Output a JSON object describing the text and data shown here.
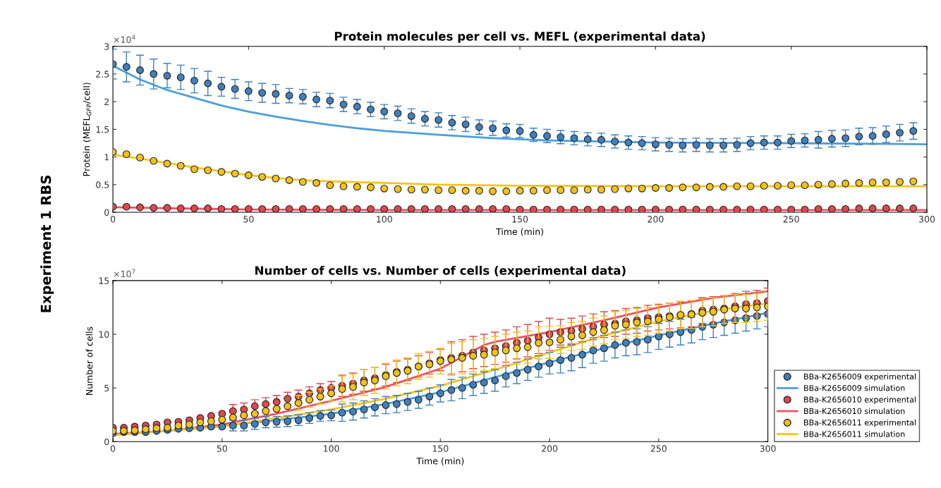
{
  "chart_data": [
    {
      "type": "scatter",
      "title": "Protein molecules per cell vs. MEFL (experimental data)",
      "xlabel": "Time (min)",
      "ylabel": "Protein (MEFL$_{GFP}$/cell)",
      "annotations": [
        "×10$^{4}$",
        "Experiment 1 RBS"
      ],
      "xlim": [
        0,
        300
      ],
      "xticks": [
        0,
        50,
        100,
        150,
        200,
        250,
        300
      ],
      "ylim": [
        0,
        3
      ],
      "yticks": [
        0,
        0.5,
        1,
        1.5,
        2,
        2.5,
        3
      ],
      "grid": false,
      "legend": false,
      "series": [
        {
          "marker": "circle",
          "color": "#3f80bd",
          "x": [
            0,
            5,
            10,
            15,
            20,
            25,
            30,
            35,
            40,
            45,
            50,
            55,
            60,
            65,
            70,
            75,
            80,
            85,
            90,
            95,
            100,
            105,
            110,
            115,
            120,
            125,
            130,
            135,
            140,
            145,
            150,
            155,
            160,
            165,
            170,
            175,
            180,
            185,
            190,
            195,
            200,
            205,
            210,
            215,
            220,
            225,
            230,
            235,
            240,
            245,
            250,
            255,
            260,
            265,
            270,
            275,
            280,
            285,
            290,
            295
          ],
          "values": [
            2.68,
            2.63,
            2.57,
            2.5,
            2.47,
            2.44,
            2.38,
            2.33,
            2.27,
            2.23,
            2.19,
            2.16,
            2.14,
            2.11,
            2.09,
            2.04,
            2.02,
            1.95,
            1.91,
            1.86,
            1.82,
            1.79,
            1.74,
            1.69,
            1.67,
            1.62,
            1.59,
            1.54,
            1.52,
            1.48,
            1.47,
            1.4,
            1.38,
            1.36,
            1.34,
            1.32,
            1.31,
            1.28,
            1.26,
            1.25,
            1.23,
            1.22,
            1.21,
            1.22,
            1.21,
            1.21,
            1.22,
            1.25,
            1.26,
            1.26,
            1.29,
            1.3,
            1.31,
            1.33,
            1.34,
            1.37,
            1.38,
            1.41,
            1.44,
            1.47
          ],
          "errors": [
            0.27,
            0.27,
            0.27,
            0.27,
            0.22,
            0.22,
            0.22,
            0.22,
            0.17,
            0.17,
            0.17,
            0.17,
            0.17,
            0.13,
            0.13,
            0.13,
            0.13,
            0.13,
            0.13,
            0.13,
            0.13,
            0.13,
            0.13,
            0.13,
            0.13,
            0.13,
            0.13,
            0.13,
            0.13,
            0.12,
            0.12,
            0.12,
            0.12,
            0.12,
            0.12,
            0.12,
            0.12,
            0.12,
            0.12,
            0.12,
            0.12,
            0.12,
            0.12,
            0.12,
            0.12,
            0.12,
            0.12,
            0.12,
            0.12,
            0.12,
            0.12,
            0.12,
            0.15,
            0.15,
            0.15,
            0.15,
            0.15,
            0.15,
            0.15,
            0.15
          ]
        },
        {
          "type": "line",
          "marker": "none",
          "color": "#4a9fdd",
          "x": [
            0,
            10,
            20,
            30,
            40,
            50,
            60,
            70,
            80,
            90,
            100,
            120,
            140,
            160,
            180,
            200,
            250,
            300
          ],
          "values": [
            2.65,
            2.4,
            2.21,
            2.07,
            1.93,
            1.82,
            1.73,
            1.65,
            1.58,
            1.52,
            1.47,
            1.4,
            1.34,
            1.3,
            1.28,
            1.26,
            1.25,
            1.23
          ]
        },
        {
          "marker": "circle",
          "color": "#e0474f",
          "x": [
            0,
            5,
            10,
            15,
            20,
            25,
            30,
            35,
            40,
            45,
            50,
            55,
            60,
            65,
            70,
            75,
            80,
            85,
            90,
            95,
            100,
            105,
            110,
            115,
            120,
            125,
            130,
            135,
            140,
            145,
            150,
            155,
            160,
            165,
            170,
            175,
            180,
            185,
            190,
            195,
            200,
            205,
            210,
            215,
            220,
            225,
            230,
            235,
            240,
            245,
            250,
            255,
            260,
            265,
            270,
            275,
            280,
            285,
            290,
            295
          ],
          "values": [
            0.1,
            0.1,
            0.09,
            0.08,
            0.08,
            0.07,
            0.07,
            0.07,
            0.06,
            0.06,
            0.06,
            0.06,
            0.06,
            0.06,
            0.06,
            0.06,
            0.06,
            0.06,
            0.06,
            0.06,
            0.06,
            0.06,
            0.06,
            0.06,
            0.06,
            0.06,
            0.06,
            0.06,
            0.06,
            0.06,
            0.05,
            0.05,
            0.05,
            0.05,
            0.05,
            0.05,
            0.05,
            0.05,
            0.05,
            0.05,
            0.05,
            0.05,
            0.05,
            0.05,
            0.05,
            0.05,
            0.05,
            0.05,
            0.05,
            0.05,
            0.05,
            0.05,
            0.06,
            0.06,
            0.06,
            0.07,
            0.07,
            0.07,
            0.07,
            0.07
          ]
        },
        {
          "type": "line",
          "marker": "none",
          "color": "#f25060",
          "x": [
            0,
            50,
            100,
            300
          ],
          "values": [
            0.09,
            0.05,
            0.04,
            0.04
          ]
        },
        {
          "marker": "circle",
          "color": "#f2c11a",
          "x": [
            0,
            5,
            10,
            15,
            20,
            25,
            30,
            35,
            40,
            45,
            50,
            55,
            60,
            65,
            70,
            75,
            80,
            85,
            90,
            95,
            100,
            105,
            110,
            115,
            120,
            125,
            130,
            135,
            140,
            145,
            150,
            155,
            160,
            165,
            170,
            175,
            180,
            185,
            190,
            195,
            200,
            205,
            210,
            215,
            220,
            225,
            230,
            235,
            240,
            245,
            250,
            255,
            260,
            265,
            270,
            275,
            280,
            285,
            290,
            295
          ],
          "values": [
            1.09,
            1.05,
            0.99,
            0.93,
            0.88,
            0.84,
            0.78,
            0.76,
            0.73,
            0.7,
            0.67,
            0.64,
            0.61,
            0.58,
            0.55,
            0.53,
            0.49,
            0.47,
            0.46,
            0.45,
            0.43,
            0.42,
            0.41,
            0.41,
            0.4,
            0.4,
            0.39,
            0.39,
            0.38,
            0.38,
            0.39,
            0.39,
            0.4,
            0.4,
            0.4,
            0.41,
            0.41,
            0.42,
            0.43,
            0.43,
            0.44,
            0.44,
            0.45,
            0.45,
            0.46,
            0.46,
            0.47,
            0.47,
            0.48,
            0.48,
            0.49,
            0.49,
            0.5,
            0.51,
            0.52,
            0.53,
            0.54,
            0.54,
            0.55,
            0.56
          ]
        },
        {
          "type": "line",
          "marker": "none",
          "color": "#f7c31a",
          "x": [
            0,
            10,
            20,
            30,
            40,
            50,
            60,
            70,
            80,
            100,
            120,
            150,
            200,
            300
          ],
          "values": [
            1.04,
            0.97,
            0.89,
            0.81,
            0.74,
            0.67,
            0.62,
            0.58,
            0.56,
            0.53,
            0.5,
            0.48,
            0.47,
            0.47
          ]
        }
      ]
    },
    {
      "type": "scatter",
      "title": "Number of cells vs. Number of cells (experimental data)",
      "xlabel": "Time (min)",
      "ylabel": "Number of cells",
      "annotations": [
        "×10$^{7}$"
      ],
      "xlim": [
        0,
        300
      ],
      "xticks": [
        0,
        50,
        100,
        150,
        200,
        250,
        300
      ],
      "ylim": [
        0,
        15
      ],
      "yticks": [
        0,
        5,
        10,
        15
      ],
      "grid": false,
      "legend": "right",
      "series": [
        {
          "marker": "circle",
          "name": "BBa-K2656009 experimental",
          "color": "#3f80bd",
          "x": [
            0,
            5,
            10,
            15,
            20,
            25,
            30,
            35,
            40,
            45,
            50,
            55,
            60,
            65,
            70,
            75,
            80,
            85,
            90,
            95,
            100,
            105,
            110,
            115,
            120,
            125,
            130,
            135,
            140,
            145,
            150,
            155,
            160,
            165,
            170,
            175,
            180,
            185,
            190,
            195,
            200,
            205,
            210,
            215,
            220,
            225,
            230,
            235,
            240,
            245,
            250,
            255,
            260,
            265,
            270,
            275,
            280,
            285,
            290,
            295,
            300
          ],
          "values": [
            0.8,
            0.9,
            0.9,
            0.9,
            1.0,
            1.1,
            1.2,
            1.25,
            1.3,
            1.4,
            1.4,
            1.5,
            1.5,
            1.65,
            1.8,
            1.85,
            1.9,
            2.0,
            2.2,
            2.4,
            2.45,
            2.7,
            2.8,
            3.0,
            3.2,
            3.4,
            3.5,
            3.7,
            3.9,
            4.2,
            4.5,
            4.8,
            5.0,
            5.3,
            5.5,
            5.7,
            6.1,
            6.4,
            6.7,
            7.0,
            7.3,
            7.6,
            7.8,
            8.1,
            8.5,
            8.7,
            9.0,
            9.2,
            9.3,
            9.5,
            9.8,
            10.0,
            10.2,
            10.4,
            10.7,
            10.9,
            11.1,
            11.3,
            11.5,
            11.7,
            11.9
          ],
          "errors": [
            null,
            null,
            null,
            null,
            null,
            null,
            null,
            null,
            null,
            null,
            null,
            0.5,
            0.5,
            0.5,
            0.5,
            0.5,
            0.5,
            0.5,
            0.5,
            0.5,
            0.5,
            0.8,
            0.8,
            0.8,
            0.8,
            0.8,
            0.8,
            0.8,
            0.8,
            0.8,
            0.8,
            1.0,
            1.0,
            1.0,
            1.0,
            1.0,
            1.0,
            1.0,
            1.0,
            1.0,
            1.0,
            1.2,
            1.2,
            1.2,
            1.2,
            1.2,
            1.2,
            1.2,
            1.2,
            1.2,
            1.2,
            1.2,
            1.2,
            1.2,
            1.2,
            1.2,
            1.2,
            1.2,
            1.2,
            1.2,
            1.2
          ]
        },
        {
          "type": "line",
          "marker": "none",
          "name": "BBa-K2656009 simulation",
          "color": "#4a9fdd",
          "x": [
            0,
            25,
            50,
            75,
            100,
            125,
            150,
            175,
            200,
            225,
            250,
            275,
            300
          ],
          "values": [
            0.7,
            1.0,
            1.5,
            2.0,
            2.6,
            3.5,
            4.6,
            6.0,
            7.4,
            8.7,
            9.9,
            11.0,
            12.0
          ]
        },
        {
          "marker": "circle",
          "name": "BBa-K2656010 experimental",
          "color": "#e0474f",
          "x": [
            0,
            5,
            10,
            15,
            20,
            25,
            30,
            35,
            40,
            45,
            50,
            55,
            60,
            65,
            70,
            75,
            80,
            85,
            90,
            95,
            100,
            105,
            110,
            115,
            120,
            125,
            130,
            135,
            140,
            145,
            150,
            155,
            160,
            165,
            170,
            175,
            180,
            185,
            190,
            195,
            200,
            205,
            210,
            215,
            220,
            225,
            230,
            235,
            240,
            245,
            250,
            255,
            260,
            265,
            270,
            275,
            280,
            285,
            290,
            295,
            300
          ],
          "values": [
            1.3,
            1.3,
            1.4,
            1.5,
            1.6,
            1.8,
            1.85,
            2.0,
            2.2,
            2.4,
            2.6,
            2.85,
            3.0,
            3.3,
            3.5,
            3.7,
            4.0,
            4.2,
            4.5,
            4.8,
            5.0,
            5.2,
            5.4,
            5.7,
            5.9,
            6.2,
            6.5,
            6.7,
            7.0,
            7.3,
            7.6,
            7.8,
            8.0,
            8.3,
            8.5,
            8.7,
            8.9,
            9.2,
            9.4,
            9.7,
            10.0,
            10.2,
            10.3,
            10.5,
            10.7,
            10.9,
            11.0,
            11.2,
            11.3,
            11.5,
            11.6,
            11.7,
            11.8,
            11.9,
            12.2,
            12.3,
            12.4,
            12.6,
            12.8,
            12.9,
            13.1
          ],
          "errors": [
            null,
            null,
            null,
            null,
            null,
            null,
            null,
            null,
            null,
            null,
            null,
            0.6,
            0.6,
            0.6,
            0.6,
            0.6,
            0.6,
            0.6,
            0.6,
            0.6,
            0.6,
            1.0,
            1.0,
            1.0,
            1.0,
            1.0,
            1.0,
            1.0,
            1.0,
            1.0,
            1.0,
            1.5,
            1.5,
            1.5,
            1.5,
            1.5,
            1.5,
            1.5,
            1.5,
            1.5,
            1.5,
            1.2,
            1.2,
            1.2,
            1.2,
            1.2,
            1.2,
            1.2,
            1.2,
            1.2,
            1.2,
            1.2,
            1.2,
            1.2,
            1.2,
            1.2,
            1.2,
            1.2,
            1.2,
            1.2,
            1.2
          ]
        },
        {
          "type": "line",
          "marker": "none",
          "name": "BBa-K2656010 simulation",
          "color": "#f25060",
          "x": [
            0,
            25,
            50,
            75,
            100,
            125,
            150,
            160,
            170,
            175,
            200,
            225,
            250,
            275,
            300
          ],
          "values": [
            0.7,
            1.0,
            1.6,
            2.6,
            3.8,
            5.1,
            6.8,
            7.9,
            9.0,
            9.3,
            10.2,
            11.3,
            12.5,
            13.4,
            14.0
          ]
        },
        {
          "marker": "circle",
          "name": "BBa-K2656011 experimental",
          "color": "#f2c11a",
          "x": [
            0,
            5,
            10,
            15,
            20,
            25,
            30,
            35,
            40,
            45,
            50,
            55,
            60,
            65,
            70,
            75,
            80,
            85,
            90,
            95,
            100,
            105,
            110,
            115,
            120,
            125,
            130,
            135,
            140,
            145,
            150,
            155,
            160,
            165,
            170,
            175,
            180,
            185,
            190,
            195,
            200,
            205,
            210,
            215,
            220,
            225,
            230,
            235,
            240,
            245,
            250,
            255,
            260,
            265,
            270,
            275,
            280,
            285,
            290,
            295,
            300
          ],
          "values": [
            1.0,
            1.0,
            1.05,
            1.15,
            1.25,
            1.3,
            1.5,
            1.6,
            1.8,
            1.9,
            2.05,
            2.25,
            2.45,
            2.6,
            2.85,
            3.05,
            3.3,
            3.6,
            3.9,
            4.2,
            4.5,
            4.9,
            5.1,
            5.5,
            5.7,
            6.1,
            6.4,
            6.6,
            7.0,
            7.2,
            7.5,
            7.65,
            7.8,
            8.0,
            8.1,
            8.3,
            8.5,
            8.7,
            8.8,
            9.2,
            9.25,
            9.5,
            9.8,
            9.9,
            10.2,
            10.4,
            10.8,
            10.9,
            11.1,
            11.2,
            11.4,
            11.6,
            11.8,
            11.85,
            12.0,
            12.1,
            12.3,
            12.4,
            12.4,
            12.5,
            12.6
          ],
          "errors": [
            null,
            null,
            null,
            null,
            null,
            null,
            null,
            null,
            null,
            null,
            null,
            null,
            null,
            null,
            null,
            null,
            null,
            0.7,
            0.7,
            0.7,
            0.7,
            1.2,
            1.2,
            1.2,
            1.2,
            1.2,
            1.2,
            1.2,
            1.2,
            1.2,
            1.2,
            1.5,
            1.5,
            1.5,
            1.5,
            1.5,
            1.5,
            1.5,
            1.5,
            1.5,
            1.5,
            1.3,
            1.3,
            1.3,
            1.3,
            1.3,
            1.3,
            1.3,
            1.3,
            1.3,
            1.3,
            1.3,
            1.3,
            1.3,
            1.3,
            1.3,
            1.3,
            1.3,
            1.3,
            1.3,
            1.3
          ]
        },
        {
          "type": "line",
          "marker": "none",
          "name": "BBa-K2656011 simulation",
          "color": "#f7c31a",
          "x": [
            0,
            50,
            100,
            125,
            150,
            175,
            200,
            225,
            250,
            275,
            300
          ],
          "values": [
            0.6,
            1.4,
            3.0,
            4.0,
            5.2,
            6.7,
            8.3,
            9.9,
            11.2,
            12.2,
            12.9
          ]
        }
      ]
    }
  ]
}
